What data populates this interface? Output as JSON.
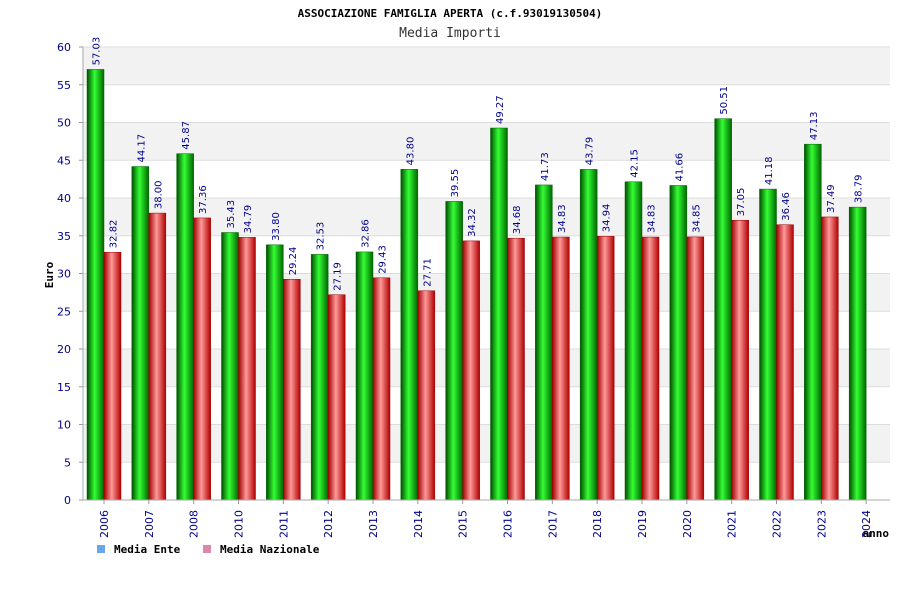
{
  "chart_data": {
    "type": "bar",
    "title": "ASSOCIAZIONE FAMIGLIA APERTA (c.f.93019130504)",
    "subtitle": "Media Importi",
    "ylabel": "Euro",
    "xlabel": "anno",
    "ylim": [
      0,
      60
    ],
    "yticks": [
      0,
      5,
      10,
      15,
      20,
      25,
      30,
      35,
      40,
      45,
      50,
      55,
      60
    ],
    "grid": true,
    "legend_position": "bottom-left",
    "categories": [
      "2006",
      "2007",
      "2008",
      "2010",
      "2011",
      "2012",
      "2013",
      "2014",
      "2015",
      "2016",
      "2017",
      "2018",
      "2019",
      "2020",
      "2021",
      "2022",
      "2023",
      "2024"
    ],
    "series": [
      {
        "name": "Media Ente",
        "color": "#00cc00",
        "legend_color": "#6aa6e8",
        "values": [
          57.03,
          44.17,
          45.87,
          35.43,
          33.8,
          32.53,
          32.86,
          43.8,
          39.55,
          49.27,
          41.73,
          43.79,
          42.15,
          41.66,
          50.51,
          41.18,
          47.13,
          38.79
        ],
        "labels": [
          "57.03",
          "44.17",
          "45.87",
          "35.43",
          "33.80",
          "32.53",
          "32.86",
          "43.80",
          "39.55",
          "49.27",
          "41.73",
          "43.79",
          "42.15",
          "41.66",
          "50.51",
          "41.18",
          "47.13",
          "38.79"
        ]
      },
      {
        "name": "Media Nazionale",
        "color": "#ee2222",
        "legend_color": "#dd88aa",
        "values": [
          32.82,
          38.0,
          37.36,
          34.79,
          29.24,
          27.19,
          29.43,
          27.71,
          34.32,
          34.68,
          34.83,
          34.94,
          34.83,
          34.85,
          37.05,
          36.46,
          37.49,
          null
        ],
        "labels": [
          "32.82",
          "38.00",
          "37.36",
          "34.79",
          "29.24",
          "27.19",
          "29.43",
          "27.71",
          "34.32",
          "34.68",
          "34.83",
          "34.94",
          "34.83",
          "34.85",
          "37.05",
          "36.46",
          "37.49",
          null
        ]
      }
    ]
  }
}
